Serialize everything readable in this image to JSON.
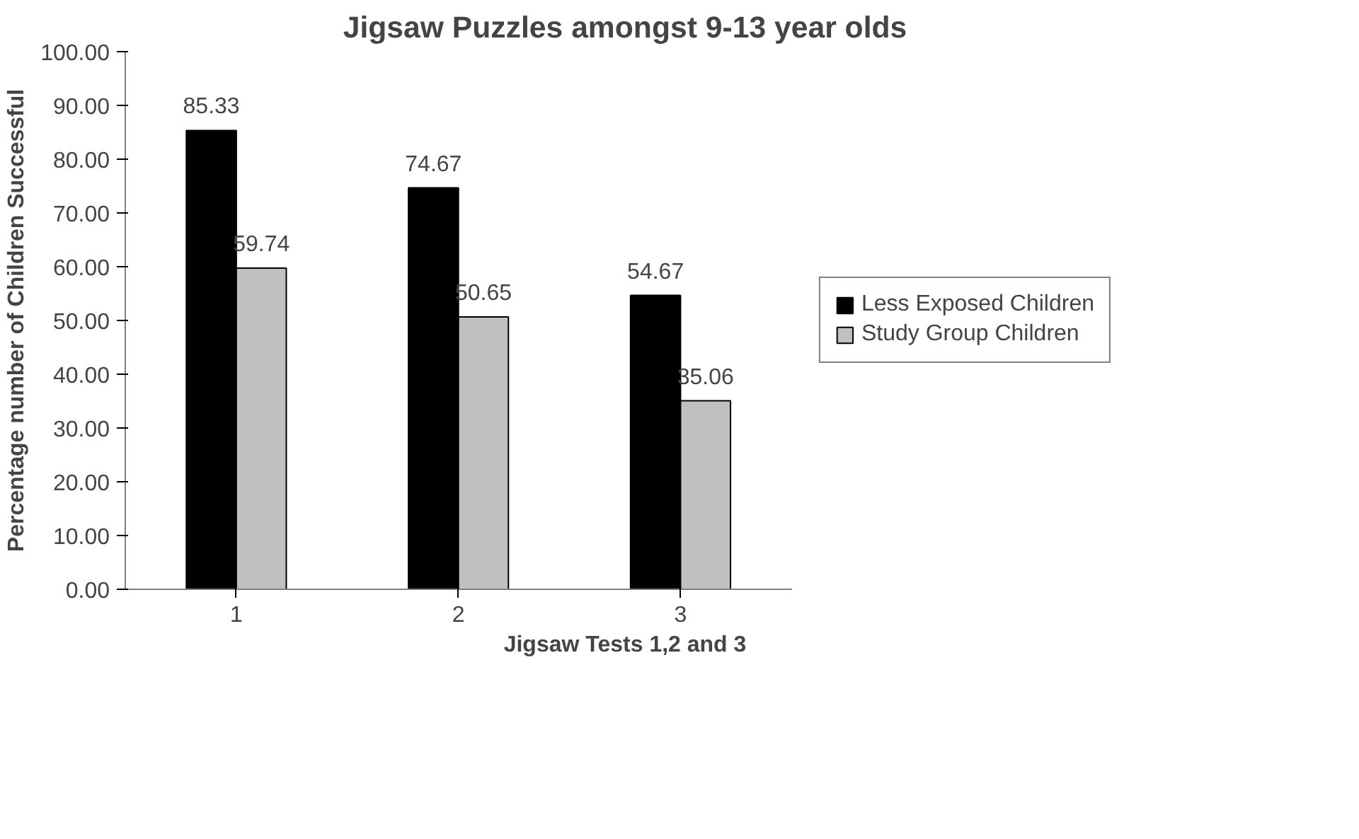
{
  "chart_data": {
    "type": "bar",
    "title": "Jigsaw Puzzles amongst 9-13 year olds",
    "xlabel": "Jigsaw Tests 1,2 and 3",
    "ylabel": "Percentage number of Children Successful",
    "categories": [
      "1",
      "2",
      "3"
    ],
    "series": [
      {
        "name": "Less Exposed Children",
        "color": "#000000",
        "values": [
          85.33,
          74.67,
          54.67
        ]
      },
      {
        "name": "Study Group Children",
        "color": "#c0c0c0",
        "values": [
          59.74,
          50.65,
          35.06
        ]
      }
    ],
    "ylim": [
      0,
      100
    ],
    "yticks": [
      {
        "value": 0,
        "label": "0.00"
      },
      {
        "value": 10,
        "label": "10.00"
      },
      {
        "value": 20,
        "label": "20.00"
      },
      {
        "value": 30,
        "label": "30.00"
      },
      {
        "value": 40,
        "label": "40.00"
      },
      {
        "value": 50,
        "label": "50.00"
      },
      {
        "value": 60,
        "label": "60.00"
      },
      {
        "value": 70,
        "label": "70.00"
      },
      {
        "value": 80,
        "label": "80.00"
      },
      {
        "value": 90,
        "label": "90.00"
      },
      {
        "value": 100,
        "label": "100.00"
      }
    ],
    "data_labels": true,
    "grid": false,
    "legend": "right"
  }
}
